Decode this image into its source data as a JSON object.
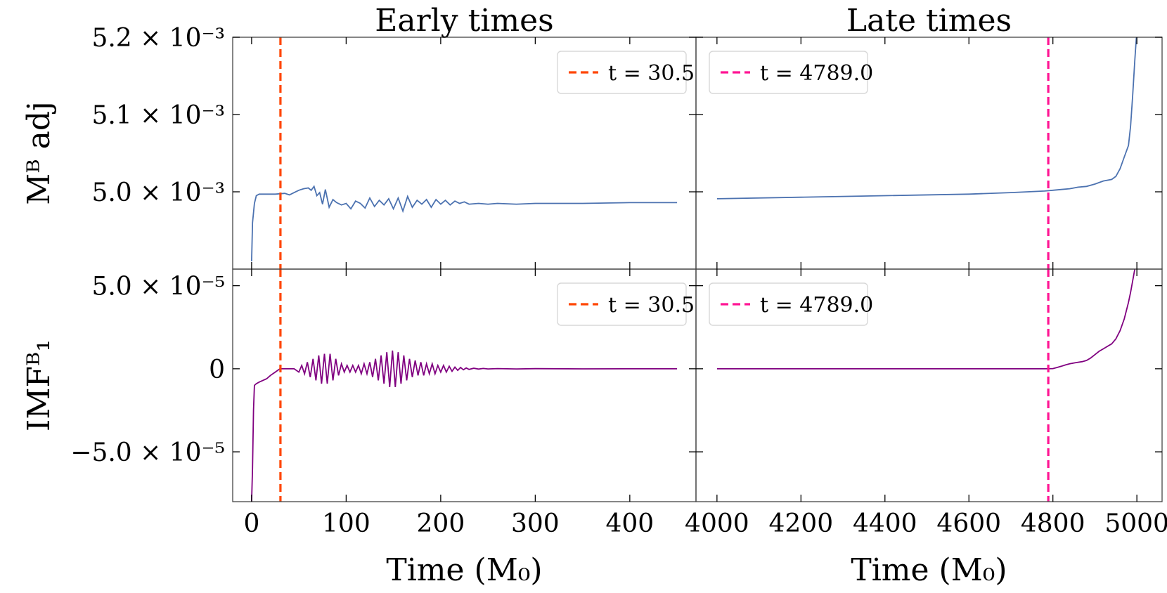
{
  "chart_data": {
    "type": "line",
    "layout": "2x2 grid, shared x per column, shared y per row",
    "columns": [
      {
        "id": "early",
        "title": "Early times",
        "xlim": [
          -20,
          470
        ],
        "xticks": [
          0,
          100,
          200,
          300,
          400
        ],
        "xtick_labels": [
          "0",
          "100",
          "200",
          "300",
          "400"
        ],
        "xlabel": "Time (M₀)"
      },
      {
        "id": "late",
        "title": "Late times",
        "xlim": [
          3950,
          5060
        ],
        "xticks": [
          4000,
          4200,
          4400,
          4600,
          4800,
          5000
        ],
        "xtick_labels": [
          "4000",
          "4200",
          "4400",
          "4600",
          "4800",
          "5000"
        ],
        "xlabel": "Time (M₀)"
      }
    ],
    "rows": [
      {
        "id": "madj",
        "ylabel": "Mᴮ adj",
        "ylim": [
          0.0049,
          0.0052
        ],
        "yticks": [
          0.005,
          0.0051,
          0.0052
        ],
        "ytick_labels": [
          "5.0 × 10⁻³",
          "5.1 × 10⁻³",
          "5.2 × 10⁻³"
        ],
        "series_color": "#4c72b0",
        "series": [
          {
            "name": "M_adj^B early",
            "column": "early",
            "x": [
              0,
              1,
              3,
              5,
              8,
              15,
              25,
              35,
              40,
              45,
              50,
              55,
              60,
              63,
              66,
              69,
              72,
              75,
              78,
              82,
              86,
              90,
              95,
              100,
              105,
              110,
              115,
              120,
              125,
              130,
              135,
              140,
              145,
              150,
              155,
              160,
              165,
              170,
              175,
              180,
              185,
              190,
              195,
              200,
              205,
              210,
              215,
              220,
              225,
              230,
              240,
              250,
              260,
              280,
              300,
              350,
              400,
              450
            ],
            "y": [
              0.00491,
              0.00496,
              0.004985,
              0.004995,
              0.004997,
              0.004997,
              0.004997,
              0.004998,
              0.004996,
              0.004999,
              0.005002,
              0.005004,
              0.005005,
              0.005002,
              0.005007,
              0.004995,
              0.004999,
              0.004984,
              0.005003,
              0.00498,
              0.00499,
              0.004986,
              0.004983,
              0.004985,
              0.004978,
              0.004988,
              0.004985,
              0.004979,
              0.004992,
              0.004981,
              0.004989,
              0.004983,
              0.004991,
              0.004978,
              0.004992,
              0.004975,
              0.004994,
              0.00498,
              0.004989,
              0.004984,
              0.00499,
              0.00498,
              0.00499,
              0.004984,
              0.004989,
              0.004983,
              0.004988,
              0.004985,
              0.004987,
              0.004984,
              0.004985,
              0.004984,
              0.004985,
              0.004984,
              0.004985,
              0.004985,
              0.004986,
              0.004986
            ]
          },
          {
            "name": "M_adj^B late",
            "column": "late",
            "x": [
              4000,
              4200,
              4400,
              4600,
              4700,
              4780,
              4800,
              4820,
              4840,
              4860,
              4880,
              4900,
              4920,
              4940,
              4950,
              4960,
              4970,
              4980,
              4985,
              4990,
              4995,
              5000
            ],
            "y": [
              0.004991,
              0.004993,
              0.004995,
              0.004997,
              0.004999,
              0.005001,
              0.005002,
              0.005003,
              0.005004,
              0.005006,
              0.005007,
              0.00501,
              0.005014,
              0.005016,
              0.00502,
              0.00503,
              0.005045,
              0.00506,
              0.005085,
              0.005125,
              0.00517,
              0.00521
            ]
          }
        ],
        "vlines": [
          {
            "column": "early",
            "x": 30.5,
            "label": "t = 30.5",
            "color": "#ff4500"
          },
          {
            "column": "late",
            "x": 4789.0,
            "label": "t = 4789.0",
            "color": "#ff1493"
          }
        ]
      },
      {
        "id": "imf",
        "ylabel": "IMFᴮ₁",
        "ylim": [
          -8e-05,
          6e-05
        ],
        "yticks": [
          -5e-05,
          0,
          5e-05
        ],
        "ytick_labels": [
          "−5.0 × 10⁻⁵",
          "0",
          "5.0 × 10⁻⁵"
        ],
        "series_color": "#800080",
        "series": [
          {
            "name": "IMF_1^B early",
            "column": "early",
            "x": [
              0,
              1,
              2,
              3,
              5,
              8,
              12,
              16,
              20,
              25,
              30,
              35,
              40,
              45,
              50,
              53,
              56,
              59,
              62,
              65,
              68,
              71,
              74,
              77,
              80,
              83,
              86,
              89,
              92,
              95,
              98,
              101,
              104,
              107,
              110,
              113,
              116,
              119,
              122,
              125,
              128,
              131,
              134,
              137,
              140,
              143,
              146,
              149,
              152,
              155,
              158,
              161,
              164,
              167,
              170,
              173,
              176,
              179,
              182,
              185,
              188,
              191,
              194,
              197,
              200,
              203,
              206,
              209,
              212,
              215,
              218,
              221,
              224,
              227,
              230,
              235,
              240,
              245,
              250,
              260,
              280,
              300,
              350,
              400,
              450
            ],
            "y": [
              -8e-05,
              -6e-05,
              -2.5e-05,
              -1e-05,
              -9e-06,
              -8e-06,
              -7e-06,
              -6e-06,
              -4e-06,
              -2e-06,
              0,
              0,
              0,
              0,
              -2e-06,
              2e-06,
              -3e-06,
              4e-06,
              -5e-06,
              6e-06,
              -7e-06,
              8e-06,
              -9e-06,
              9e-06,
              -9e-06,
              9e-06,
              -7e-06,
              6e-06,
              -4e-06,
              3e-06,
              -2e-06,
              2e-06,
              -2e-06,
              2e-06,
              -2e-06,
              2e-06,
              -3e-06,
              3e-06,
              -3e-06,
              4e-06,
              -5e-06,
              6e-06,
              -7e-06,
              8e-06,
              -9e-06,
              1e-05,
              -1.1e-05,
              1.1e-05,
              -1.1e-05,
              1e-05,
              -9e-06,
              8e-06,
              -7e-06,
              6e-06,
              -5e-06,
              5e-06,
              -4e-06,
              4e-06,
              -4e-06,
              3e-06,
              -3e-06,
              3e-06,
              -3e-06,
              2e-06,
              -2e-06,
              2e-06,
              -2e-06,
              1.5e-06,
              -1.5e-06,
              1e-06,
              -1e-06,
              8e-07,
              -6e-07,
              5e-07,
              -4e-07,
              3e-07,
              -2e-07,
              2e-07,
              -1e-07,
              1e-07,
              -1e-07,
              5e-08,
              -5e-08,
              0,
              0
            ]
          },
          {
            "name": "IMF_1^B late",
            "column": "late",
            "x": [
              4000,
              4200,
              4400,
              4600,
              4780,
              4800,
              4810,
              4820,
              4830,
              4840,
              4850,
              4860,
              4870,
              4880,
              4890,
              4900,
              4910,
              4920,
              4930,
              4940,
              4950,
              4960,
              4970,
              4975,
              4980,
              4985,
              4990,
              4995
            ],
            "y": [
              0,
              0,
              0,
              0,
              0,
              1e-07,
              8e-07,
              1.5e-06,
              2.3e-06,
              3e-06,
              3.5e-06,
              3.9e-06,
              4.3e-06,
              5e-06,
              6.5e-06,
              8.5e-06,
              1.05e-05,
              1.2e-05,
              1.35e-05,
              1.5e-05,
              1.8e-05,
              2.3e-05,
              3e-05,
              3.5e-05,
              4e-05,
              4.6e-05,
              5.3e-05,
              6e-05
            ]
          }
        ],
        "vlines": [
          {
            "column": "early",
            "x": 30.5,
            "label": "t = 30.5",
            "color": "#ff4500"
          },
          {
            "column": "late",
            "x": 4789.0,
            "label": "t = 4789.0",
            "color": "#ff1493"
          }
        ]
      }
    ],
    "legends": [
      {
        "row": "madj",
        "column": "early",
        "placement": "top-right"
      },
      {
        "row": "madj",
        "column": "late",
        "placement": "top-left"
      },
      {
        "row": "imf",
        "column": "early",
        "placement": "top-right"
      },
      {
        "row": "imf",
        "column": "late",
        "placement": "top-left"
      }
    ]
  }
}
